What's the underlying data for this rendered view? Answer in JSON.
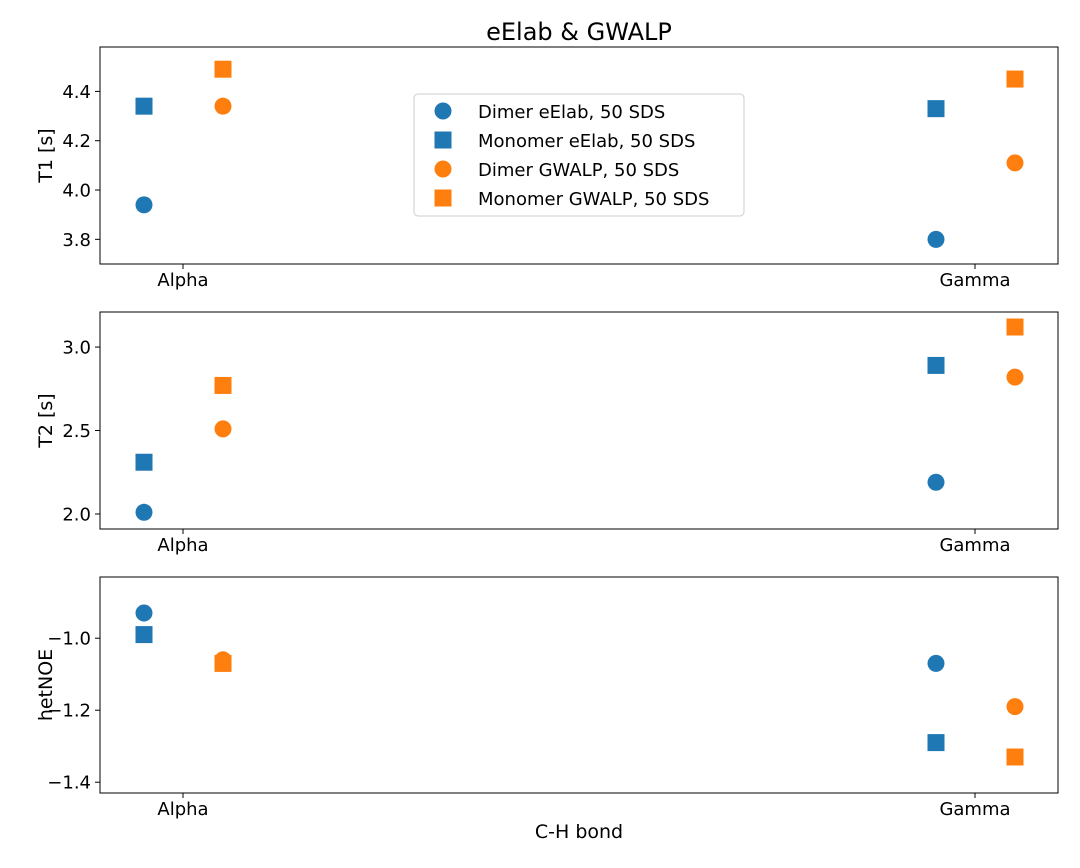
{
  "figure": {
    "title": "eElab & GWALP",
    "xlabel": "C-H bond"
  },
  "legend": {
    "placement": "upper center (first panel)",
    "entries": [
      {
        "label": "Dimer eElab, 50 SDS",
        "color": "#1f77b4",
        "marker": "circle"
      },
      {
        "label": "Monomer eElab, 50 SDS",
        "color": "#1f77b4",
        "marker": "square"
      },
      {
        "label": "Dimer GWALP, 50 SDS",
        "color": "#ff7f0e",
        "marker": "circle"
      },
      {
        "label": "Monomer GWALP, 50 SDS",
        "color": "#ff7f0e",
        "marker": "square"
      }
    ]
  },
  "chart_data": [
    {
      "type": "scatter",
      "ylabel": "T1 [s]",
      "ylim": [
        3.7,
        4.58
      ],
      "yticks": [
        "3.8",
        "4.0",
        "4.2",
        "4.4"
      ],
      "categories": [
        "Alpha",
        "Gamma"
      ],
      "series": [
        {
          "name": "Dimer eElab, 50 SDS",
          "color": "#1f77b4",
          "marker": "circle",
          "values": [
            3.94,
            3.8
          ]
        },
        {
          "name": "Monomer eElab, 50 SDS",
          "color": "#1f77b4",
          "marker": "square",
          "values": [
            4.34,
            4.33
          ]
        },
        {
          "name": "Dimer GWALP, 50 SDS",
          "color": "#ff7f0e",
          "marker": "circle",
          "values": [
            4.34,
            4.11
          ]
        },
        {
          "name": "Monomer GWALP, 50 SDS",
          "color": "#ff7f0e",
          "marker": "square",
          "values": [
            4.49,
            4.45
          ]
        }
      ]
    },
    {
      "type": "scatter",
      "ylabel": "T2 [s]",
      "ylim": [
        1.91,
        3.21
      ],
      "yticks": [
        "2.0",
        "2.5",
        "3.0"
      ],
      "categories": [
        "Alpha",
        "Gamma"
      ],
      "series": [
        {
          "name": "Dimer eElab, 50 SDS",
          "color": "#1f77b4",
          "marker": "circle",
          "values": [
            2.01,
            2.19
          ]
        },
        {
          "name": "Monomer eElab, 50 SDS",
          "color": "#1f77b4",
          "marker": "square",
          "values": [
            2.31,
            2.89
          ]
        },
        {
          "name": "Dimer GWALP, 50 SDS",
          "color": "#ff7f0e",
          "marker": "circle",
          "values": [
            2.51,
            2.82
          ]
        },
        {
          "name": "Monomer GWALP, 50 SDS",
          "color": "#ff7f0e",
          "marker": "square",
          "values": [
            2.77,
            3.12
          ]
        }
      ]
    },
    {
      "type": "scatter",
      "ylabel": "hetNOE",
      "ylim": [
        -1.43,
        -0.83
      ],
      "yticks": [
        "−1.4",
        "−1.2",
        "−1.0"
      ],
      "categories": [
        "Alpha",
        "Gamma"
      ],
      "series": [
        {
          "name": "Dimer eElab, 50 SDS",
          "color": "#1f77b4",
          "marker": "circle",
          "values": [
            -0.93,
            -1.07
          ]
        },
        {
          "name": "Monomer eElab, 50 SDS",
          "color": "#1f77b4",
          "marker": "square",
          "values": [
            -0.99,
            -1.29
          ]
        },
        {
          "name": "Dimer GWALP, 50 SDS",
          "color": "#ff7f0e",
          "marker": "circle",
          "values": [
            -1.06,
            -1.19
          ]
        },
        {
          "name": "Monomer GWALP, 50 SDS",
          "color": "#ff7f0e",
          "marker": "square",
          "values": [
            -1.07,
            -1.33
          ]
        }
      ]
    }
  ]
}
